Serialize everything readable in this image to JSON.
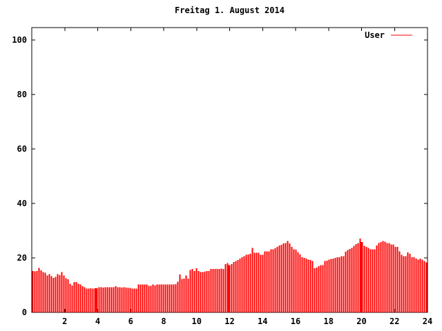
{
  "title": "Freitag 1. August 2014",
  "legend": {
    "label": "User",
    "sample_color": "#ff0000",
    "position": "top-right-inside"
  },
  "colors": {
    "bars": "#ff0000",
    "axis": "#000000",
    "background": "#ffffff",
    "text": "#000000"
  },
  "axes": {
    "x_tick_labels": [
      "2",
      "4",
      "6",
      "8",
      "10",
      "12",
      "14",
      "16",
      "18",
      "20",
      "22",
      "24"
    ],
    "x_tick_values": [
      2,
      4,
      6,
      8,
      10,
      12,
      14,
      16,
      18,
      20,
      22,
      24
    ],
    "y_tick_labels": [
      "0",
      "20",
      "40",
      "60",
      "80",
      "100"
    ],
    "y_tick_values": [
      0,
      20,
      40,
      60,
      80,
      100
    ],
    "grid": false
  },
  "chart_data": {
    "type": "bar",
    "title": "Freitag 1. August 2014",
    "xlabel": "",
    "ylabel": "",
    "x_unit": "hour of day",
    "xlim": [
      0,
      24
    ],
    "ylim": [
      0,
      104.6
    ],
    "legend_position": "top-right",
    "grid": false,
    "bar_color": "#ff0000",
    "x_start": 0.063,
    "x_step": 0.12565,
    "wide_bar_indices": [
      31,
      95,
      159
    ],
    "series": [
      {
        "name": "User",
        "values": [
          15.2,
          15.1,
          15.2,
          16.3,
          15.4,
          14.8,
          14.6,
          13.5,
          14.0,
          13.3,
          12.7,
          13.1,
          14.1,
          13.7,
          14.8,
          13.5,
          12.6,
          12.2,
          10.5,
          9.9,
          11.2,
          11.2,
          10.5,
          10.2,
          9.6,
          9.2,
          8.8,
          8.8,
          8.9,
          8.8,
          8.8,
          8.9,
          9.2,
          9.2,
          9.1,
          9.2,
          9.3,
          9.2,
          9.2,
          9.2,
          9.6,
          9.3,
          9.2,
          9.1,
          9.2,
          9.1,
          9.0,
          9.0,
          8.8,
          8.7,
          8.8,
          10.3,
          10.3,
          10.3,
          10.2,
          10.3,
          9.7,
          9.8,
          10.3,
          9.9,
          10.3,
          10.3,
          10.2,
          10.3,
          10.3,
          10.2,
          10.3,
          10.3,
          10.3,
          10.4,
          11.3,
          13.9,
          12.3,
          12.4,
          13.5,
          12.4,
          15.6,
          16.0,
          15.2,
          16.2,
          15.2,
          14.8,
          14.8,
          14.9,
          15.2,
          15.2,
          16.0,
          16.0,
          16.0,
          16.0,
          16.0,
          16.1,
          16.0,
          17.7,
          18.1,
          17.3,
          17.7,
          18.5,
          18.9,
          19.3,
          19.8,
          20.3,
          20.7,
          21.1,
          21.3,
          21.5,
          23.7,
          21.9,
          21.9,
          21.9,
          21.1,
          21.1,
          22.4,
          22.4,
          22.4,
          23.2,
          23.2,
          23.6,
          24.1,
          24.6,
          24.8,
          25.3,
          25.4,
          26.2,
          25.3,
          24.1,
          23.2,
          23.0,
          22.0,
          21.3,
          20.2,
          20.0,
          19.8,
          19.4,
          19.2,
          18.9,
          16.2,
          16.4,
          17.0,
          17.3,
          17.4,
          18.9,
          19.0,
          19.4,
          19.6,
          19.8,
          20.0,
          20.2,
          20.3,
          20.6,
          20.7,
          22.3,
          22.9,
          23.3,
          23.7,
          24.4,
          25.1,
          25.4,
          27.1,
          25.8,
          24.5,
          24.1,
          23.7,
          23.2,
          23.2,
          23.2,
          24.6,
          25.5,
          25.8,
          26.2,
          26.0,
          25.4,
          25.4,
          25.0,
          25.0,
          24.1,
          24.1,
          22.4,
          21.1,
          20.7,
          20.7,
          22.0,
          21.5,
          20.3,
          20.3,
          19.8,
          19.4,
          19.8,
          19.4,
          18.9,
          18.3
        ]
      }
    ]
  }
}
